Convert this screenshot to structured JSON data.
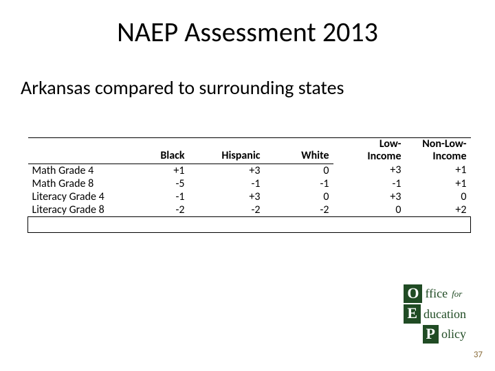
{
  "title": "NAEP Assessment 2013",
  "subtitle": "Arkansas compared to surrounding states",
  "table": {
    "columns": [
      "Black",
      "Hispanic",
      "White",
      "Low-\nIncome",
      "Non-Low-\nIncome"
    ],
    "col_black": "Black",
    "col_hispanic": "Hispanic",
    "col_white": "White",
    "col_low_l1": "Low-",
    "col_low_l2": "Income",
    "col_nonlow_l1": "Non-Low-",
    "col_nonlow_l2": "Income",
    "rows": [
      {
        "label": "Math Grade 4",
        "black": "+1",
        "hispanic": "+3",
        "white": "0",
        "low": "+3",
        "nonlow": "+1"
      },
      {
        "label": "Math Grade 8",
        "black": "-5",
        "hispanic": "-1",
        "white": "-1",
        "low": "-1",
        "nonlow": "+1"
      },
      {
        "label": "Literacy Grade 4",
        "black": "-1",
        "hispanic": "+3",
        "white": "0",
        "low": "+3",
        "nonlow": "0"
      },
      {
        "label": "Literacy Grade 8",
        "black": "-2",
        "hispanic": "-2",
        "white": "-2",
        "low": "0",
        "nonlow": "+2"
      }
    ]
  },
  "logo": {
    "O": "O",
    "ffice": "ffice",
    "for": "for",
    "E": "E",
    "ducation": "ducation",
    "P": "P",
    "olicy": "olicy"
  },
  "page_number": "37",
  "colors": {
    "brand_green": "#204b24",
    "page_num": "#8a6d3b",
    "background": "#ffffff",
    "text": "#000000"
  }
}
